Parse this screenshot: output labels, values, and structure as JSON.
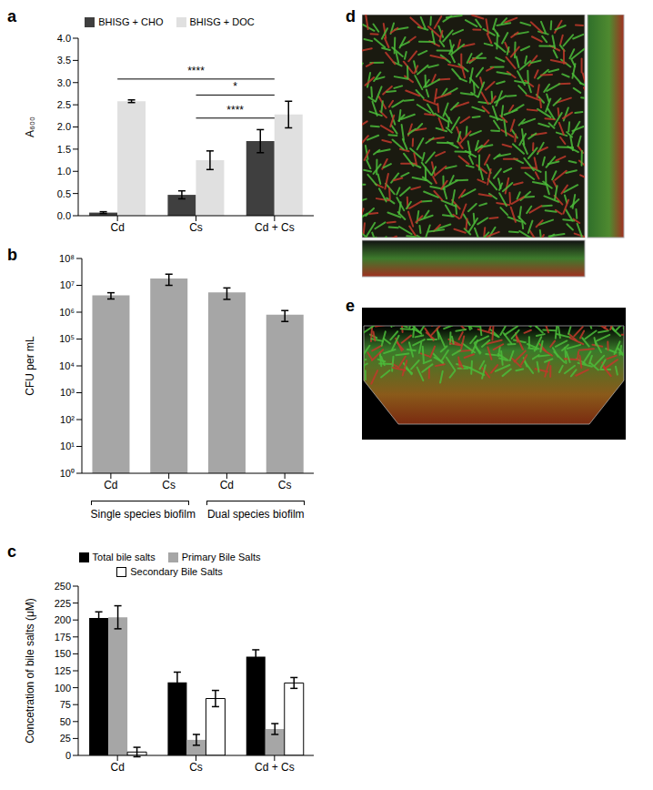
{
  "chart_data": [
    {
      "type": "bar",
      "title": "a",
      "y_label": "A₆₀₀",
      "categories": [
        "Cd",
        "Cs",
        "Cd + Cs"
      ],
      "series": [
        {
          "name": "BHISG + CHO",
          "color": "#3f3f3f",
          "values": [
            0.07,
            0.47,
            1.68
          ],
          "errors": [
            0.02,
            0.09,
            0.26
          ]
        },
        {
          "name": "BHISG + DOC",
          "color": "#e0e0e0",
          "values": [
            2.58,
            1.25,
            2.28
          ],
          "errors": [
            0.03,
            0.21,
            0.3
          ]
        }
      ],
      "ylim": [
        0,
        4
      ],
      "yticks": [
        {
          "value": 0,
          "label": "0.0"
        },
        0.5,
        {
          "value": 1,
          "label": "1.0"
        },
        1.5,
        {
          "value": 2,
          "label": "2.0"
        },
        2.5,
        {
          "value": 3,
          "label": "3.0"
        },
        3.5,
        {
          "value": 4,
          "label": "4.0"
        }
      ],
      "legend": "top",
      "annotations": [
        {
          "text": "****",
          "y": 3.08,
          "from": "Cd",
          "to": "Cd + Cs"
        },
        {
          "text": "*",
          "y": 2.72,
          "from": "Cs",
          "to": "Cd + Cs"
        },
        {
          "text": "****",
          "y": 2.2,
          "from": "Cs",
          "to": "Cd + Cs"
        }
      ]
    },
    {
      "type": "bar",
      "title": "b",
      "y_label": "CFU per mL",
      "categories": [
        "Cd",
        "Cs",
        "Cd",
        "Cs"
      ],
      "values": [
        4200000,
        18000000,
        5500000,
        800000
      ],
      "errors": [
        1100000,
        8000000,
        2500000,
        350000
      ],
      "color": "#a6a6a6",
      "log": "y",
      "ylim": [
        1,
        100000000
      ],
      "yticks": [
        {
          "value": 1,
          "label": "10⁰"
        },
        {
          "value": 10,
          "label": "10¹"
        },
        {
          "value": 100,
          "label": "10²"
        },
        {
          "value": 1000,
          "label": "10³"
        },
        {
          "value": 10000,
          "label": "10⁴"
        },
        {
          "value": 100000,
          "label": "10⁵"
        },
        {
          "value": 1000000,
          "label": "10⁶"
        },
        {
          "value": 10000000,
          "label": "10⁷"
        },
        {
          "value": 100000000,
          "label": "10⁸"
        }
      ],
      "groups": [
        {
          "label": "Single species biofilm",
          "categories": [
            0,
            1
          ]
        },
        {
          "label": "Dual species biofilm",
          "categories": [
            2,
            3
          ]
        }
      ]
    },
    {
      "type": "bar",
      "title": "c",
      "y_label": "Concetration of bile salts (μM)",
      "categories": [
        "Cd",
        "Cs",
        "Cd + Cs"
      ],
      "series": [
        {
          "name": "Total bile salts",
          "color": "#000000",
          "values": [
            203,
            108,
            146
          ],
          "errors": [
            9,
            15,
            10
          ]
        },
        {
          "name": "Primary Bile Salts",
          "color": "#a6a6a6",
          "values": [
            204,
            23,
            39
          ],
          "errors": [
            17,
            8,
            8
          ]
        },
        {
          "name": "Secondary Bile Salts",
          "color": "#ffffff",
          "values": [
            5,
            84,
            107
          ],
          "errors": [
            7,
            12,
            8
          ]
        }
      ],
      "ylim": [
        0,
        250
      ],
      "yticks": [
        0,
        25,
        50,
        75,
        100,
        125,
        150,
        175,
        200,
        225,
        250
      ],
      "legend": "top"
    }
  ],
  "images": [
    {
      "label": "d"
    },
    {
      "label": "e"
    }
  ]
}
